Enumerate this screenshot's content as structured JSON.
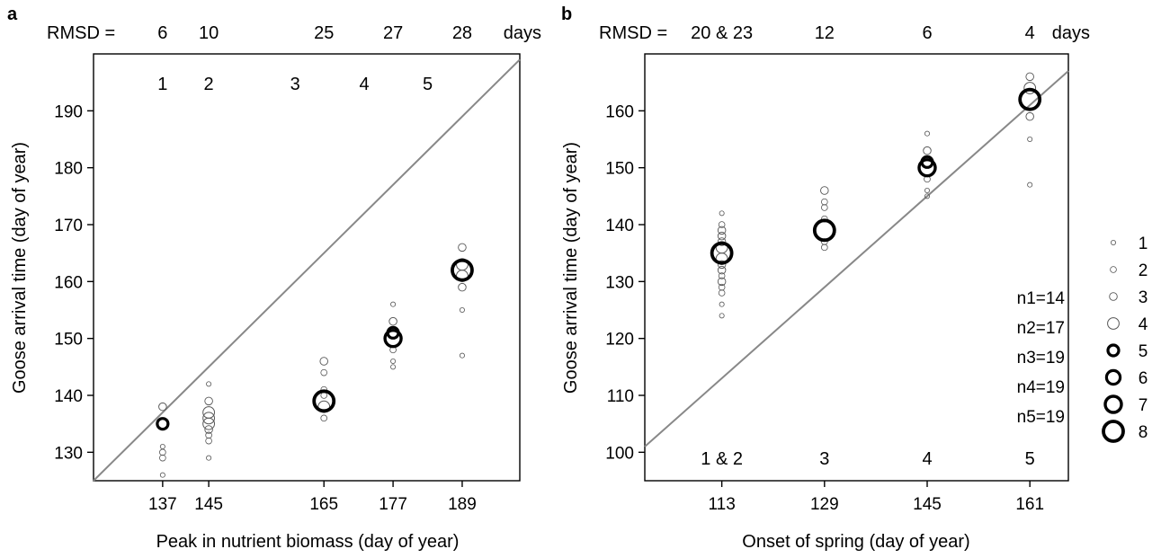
{
  "chart_data": [
    {
      "panel": "a",
      "type": "scatter",
      "xlabel": "Peak in nutrient biomass (day of year)",
      "ylabel": "Goose arrival time (day of year)",
      "xlim": [
        125,
        199
      ],
      "ylim": [
        125,
        200
      ],
      "xticks": [
        137,
        145,
        165,
        177,
        189
      ],
      "yticks": [
        130,
        140,
        150,
        160,
        170,
        180,
        190
      ],
      "rmsd_prefix": "RMSD =",
      "rmsd_unit": "days",
      "rmsd": [
        {
          "x": 137,
          "text": "6"
        },
        {
          "x": 145,
          "text": "10"
        },
        {
          "x": 165,
          "text": "25"
        },
        {
          "x": 177,
          "text": "27"
        },
        {
          "x": 189,
          "text": "28"
        }
      ],
      "site_labels": [
        {
          "x": 137,
          "text": "1"
        },
        {
          "x": 145,
          "text": "2"
        },
        {
          "x": 160,
          "text": "3"
        },
        {
          "x": 172,
          "text": "4"
        },
        {
          "x": 183,
          "text": "5"
        }
      ],
      "reference_line": {
        "from": [
          125,
          125
        ],
        "to": [
          199,
          199
        ]
      },
      "points": [
        {
          "x": 137,
          "y": 126,
          "size": 1
        },
        {
          "x": 137,
          "y": 129,
          "size": 2
        },
        {
          "x": 137,
          "y": 130,
          "size": 2
        },
        {
          "x": 137,
          "y": 131,
          "size": 1
        },
        {
          "x": 137,
          "y": 138,
          "size": 3
        },
        {
          "x": 137,
          "y": 135,
          "size": 5
        },
        {
          "x": 145,
          "y": 129,
          "size": 1
        },
        {
          "x": 145,
          "y": 132,
          "size": 2
        },
        {
          "x": 145,
          "y": 133,
          "size": 2
        },
        {
          "x": 145,
          "y": 134,
          "size": 3
        },
        {
          "x": 145,
          "y": 135,
          "size": 4
        },
        {
          "x": 145,
          "y": 137,
          "size": 4
        },
        {
          "x": 145,
          "y": 139,
          "size": 3
        },
        {
          "x": 145,
          "y": 142,
          "size": 1
        },
        {
          "x": 145,
          "y": 136,
          "size": 4
        },
        {
          "x": 165,
          "y": 136,
          "size": 2
        },
        {
          "x": 165,
          "y": 140,
          "size": 2
        },
        {
          "x": 165,
          "y": 141,
          "size": 2
        },
        {
          "x": 165,
          "y": 144,
          "size": 2
        },
        {
          "x": 165,
          "y": 146,
          "size": 3
        },
        {
          "x": 165,
          "y": 138,
          "size": 4
        },
        {
          "x": 165,
          "y": 139,
          "size": 8
        },
        {
          "x": 177,
          "y": 145,
          "size": 1
        },
        {
          "x": 177,
          "y": 146,
          "size": 1
        },
        {
          "x": 177,
          "y": 148,
          "size": 2
        },
        {
          "x": 177,
          "y": 151,
          "size": 4
        },
        {
          "x": 177,
          "y": 153,
          "size": 3
        },
        {
          "x": 177,
          "y": 156,
          "size": 1
        },
        {
          "x": 177,
          "y": 150,
          "size": 7
        },
        {
          "x": 177,
          "y": 151,
          "size": 5
        },
        {
          "x": 189,
          "y": 147,
          "size": 1
        },
        {
          "x": 189,
          "y": 155,
          "size": 1
        },
        {
          "x": 189,
          "y": 159,
          "size": 3
        },
        {
          "x": 189,
          "y": 161,
          "size": 4
        },
        {
          "x": 189,
          "y": 163,
          "size": 4
        },
        {
          "x": 189,
          "y": 166,
          "size": 3
        },
        {
          "x": 189,
          "y": 162,
          "size": 8
        }
      ]
    },
    {
      "panel": "b",
      "type": "scatter",
      "xlabel": "Onset of spring (day of year)",
      "ylabel": "Goose arrival time (day of year)",
      "xlim": [
        101,
        167
      ],
      "ylim": [
        95,
        170
      ],
      "xticks": [
        113,
        129,
        145,
        161
      ],
      "yticks": [
        100,
        110,
        120,
        130,
        140,
        150,
        160
      ],
      "rmsd_prefix": "RMSD =",
      "rmsd_unit": "days",
      "rmsd": [
        {
          "x": 113,
          "text": "20 & 23"
        },
        {
          "x": 129,
          "text": "12"
        },
        {
          "x": 145,
          "text": "6"
        },
        {
          "x": 161,
          "text": "4"
        }
      ],
      "site_labels": [
        {
          "x": 113,
          "text": "1 & 2"
        },
        {
          "x": 129,
          "text": "3"
        },
        {
          "x": 145,
          "text": "4"
        },
        {
          "x": 161,
          "text": "5"
        }
      ],
      "n_labels": [
        "n1=14",
        "n2=17",
        "n3=19",
        "n4=19",
        "n5=19"
      ],
      "reference_line": {
        "from": [
          101,
          101
        ],
        "to": [
          167,
          167
        ]
      },
      "points": [
        {
          "x": 113,
          "y": 124,
          "size": 1
        },
        {
          "x": 113,
          "y": 126,
          "size": 1
        },
        {
          "x": 113,
          "y": 128,
          "size": 2
        },
        {
          "x": 113,
          "y": 129,
          "size": 2
        },
        {
          "x": 113,
          "y": 130,
          "size": 3
        },
        {
          "x": 113,
          "y": 131,
          "size": 2
        },
        {
          "x": 113,
          "y": 132,
          "size": 3
        },
        {
          "x": 113,
          "y": 133,
          "size": 3
        },
        {
          "x": 113,
          "y": 134,
          "size": 4
        },
        {
          "x": 113,
          "y": 136,
          "size": 4
        },
        {
          "x": 113,
          "y": 137,
          "size": 3
        },
        {
          "x": 113,
          "y": 138,
          "size": 3
        },
        {
          "x": 113,
          "y": 139,
          "size": 3
        },
        {
          "x": 113,
          "y": 140,
          "size": 2
        },
        {
          "x": 113,
          "y": 142,
          "size": 1
        },
        {
          "x": 113,
          "y": 135,
          "size": 8
        },
        {
          "x": 129,
          "y": 136,
          "size": 2
        },
        {
          "x": 129,
          "y": 137,
          "size": 2
        },
        {
          "x": 129,
          "y": 141,
          "size": 2
        },
        {
          "x": 129,
          "y": 143,
          "size": 2
        },
        {
          "x": 129,
          "y": 144,
          "size": 2
        },
        {
          "x": 129,
          "y": 146,
          "size": 3
        },
        {
          "x": 129,
          "y": 139,
          "size": 8
        },
        {
          "x": 145,
          "y": 145,
          "size": 1
        },
        {
          "x": 145,
          "y": 146,
          "size": 1
        },
        {
          "x": 145,
          "y": 148,
          "size": 2
        },
        {
          "x": 145,
          "y": 153,
          "size": 3
        },
        {
          "x": 145,
          "y": 156,
          "size": 1
        },
        {
          "x": 145,
          "y": 150,
          "size": 7
        },
        {
          "x": 145,
          "y": 151,
          "size": 5
        },
        {
          "x": 161,
          "y": 147,
          "size": 1
        },
        {
          "x": 161,
          "y": 155,
          "size": 1
        },
        {
          "x": 161,
          "y": 159,
          "size": 3
        },
        {
          "x": 161,
          "y": 164,
          "size": 4
        },
        {
          "x": 161,
          "y": 166,
          "size": 3
        },
        {
          "x": 161,
          "y": 162,
          "size": 8
        }
      ]
    }
  ],
  "legend": {
    "placement": "right",
    "entries": [
      {
        "label": "1",
        "size": 1
      },
      {
        "label": "2",
        "size": 2
      },
      {
        "label": "3",
        "size": 3
      },
      {
        "label": "4",
        "size": 4
      },
      {
        "label": "5",
        "size": 5
      },
      {
        "label": "6",
        "size": 6
      },
      {
        "label": "7",
        "size": 7
      },
      {
        "label": "8",
        "size": 8
      }
    ]
  },
  "colors": {
    "reference_line": "#888888",
    "marker": "#000000",
    "axis": "#000000"
  }
}
